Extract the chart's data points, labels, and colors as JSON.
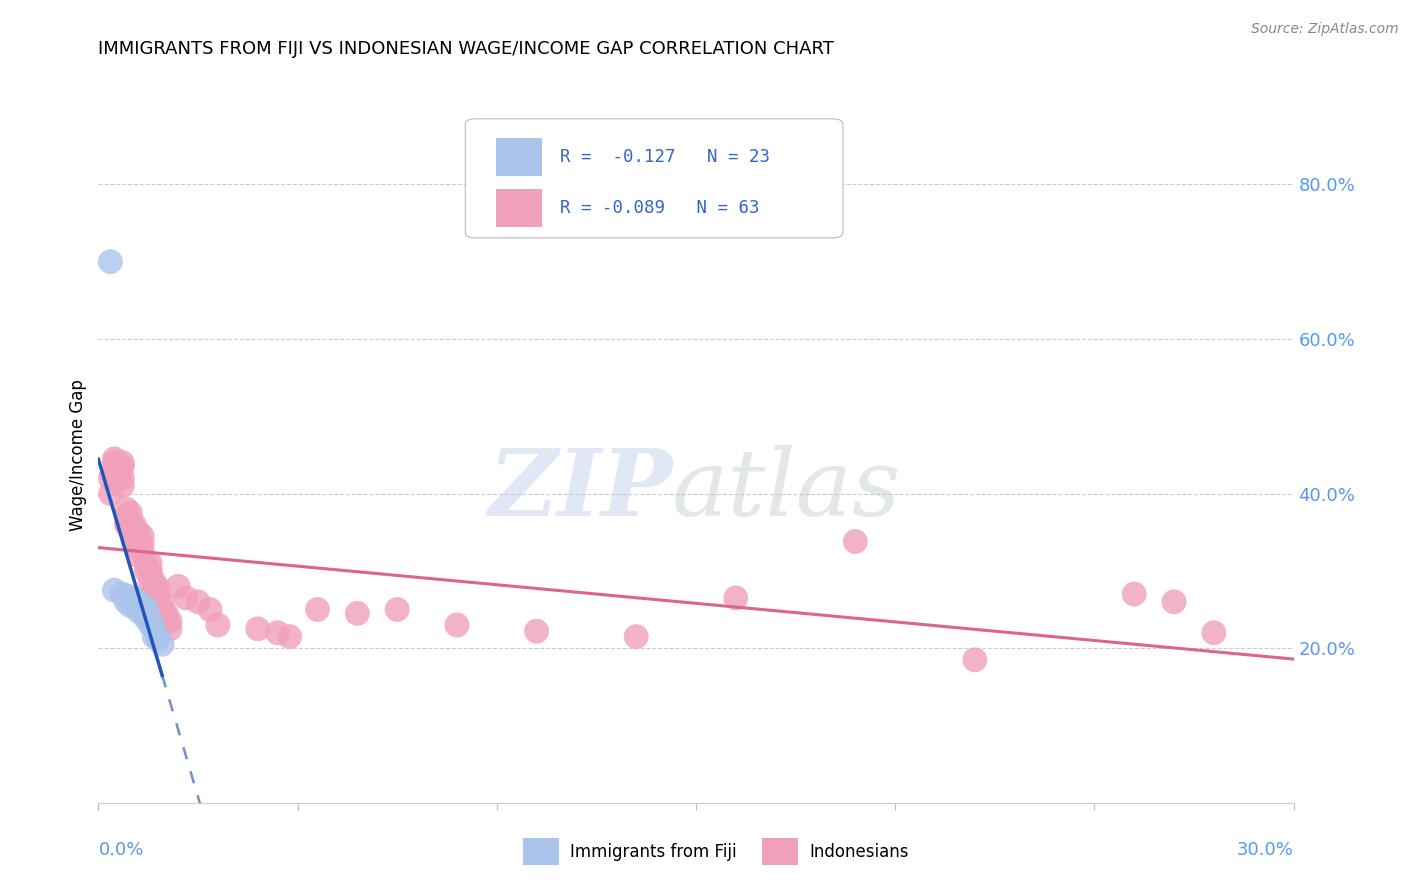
{
  "title": "IMMIGRANTS FROM FIJI VS INDONESIAN WAGE/INCOME GAP CORRELATION CHART",
  "source": "Source: ZipAtlas.com",
  "ylabel": "Wage/Income Gap",
  "legend_fiji_label": "Immigrants from Fiji",
  "legend_indonesian_label": "Indonesians",
  "legend_fiji_R": "R =  -0.127",
  "legend_fiji_N": "N = 23",
  "legend_indonesian_R": "R = -0.089",
  "legend_indonesian_N": "N = 63",
  "fiji_color": "#aac4eb",
  "indonesian_color": "#f0a0b8",
  "fiji_line_color": "#2255bb",
  "indonesian_line_color": "#dd6688",
  "background_color": "#ffffff",
  "xlim": [
    0.0,
    0.3
  ],
  "ylim": [
    0.0,
    0.9
  ],
  "ytick_values": [
    0.2,
    0.4,
    0.6,
    0.8
  ],
  "xtick_values": [
    0.0,
    0.05,
    0.1,
    0.15,
    0.2,
    0.25,
    0.3
  ],
  "fiji_points_x": [
    0.004,
    0.006,
    0.007,
    0.007,
    0.008,
    0.008,
    0.009,
    0.009,
    0.01,
    0.01,
    0.01,
    0.011,
    0.011,
    0.012,
    0.012,
    0.012,
    0.013,
    0.013,
    0.014,
    0.014,
    0.015,
    0.016,
    0.003
  ],
  "fiji_points_y": [
    0.275,
    0.27,
    0.268,
    0.26,
    0.265,
    0.255,
    0.265,
    0.258,
    0.26,
    0.252,
    0.248,
    0.255,
    0.245,
    0.252,
    0.242,
    0.238,
    0.238,
    0.23,
    0.225,
    0.215,
    0.212,
    0.205,
    0.7
  ],
  "indonesian_points_x": [
    0.003,
    0.003,
    0.004,
    0.004,
    0.004,
    0.005,
    0.005,
    0.006,
    0.006,
    0.006,
    0.006,
    0.007,
    0.007,
    0.007,
    0.008,
    0.008,
    0.008,
    0.009,
    0.009,
    0.009,
    0.01,
    0.01,
    0.01,
    0.01,
    0.011,
    0.011,
    0.011,
    0.012,
    0.012,
    0.013,
    0.013,
    0.013,
    0.013,
    0.014,
    0.014,
    0.015,
    0.015,
    0.016,
    0.016,
    0.017,
    0.017,
    0.018,
    0.018,
    0.02,
    0.022,
    0.025,
    0.028,
    0.03,
    0.04,
    0.045,
    0.048,
    0.055,
    0.065,
    0.075,
    0.09,
    0.11,
    0.135,
    0.16,
    0.19,
    0.22,
    0.26,
    0.27,
    0.28
  ],
  "indonesian_points_y": [
    0.42,
    0.4,
    0.445,
    0.44,
    0.43,
    0.435,
    0.425,
    0.44,
    0.435,
    0.42,
    0.41,
    0.38,
    0.37,
    0.36,
    0.375,
    0.365,
    0.355,
    0.36,
    0.35,
    0.34,
    0.35,
    0.34,
    0.33,
    0.32,
    0.345,
    0.335,
    0.325,
    0.31,
    0.3,
    0.31,
    0.3,
    0.295,
    0.285,
    0.285,
    0.275,
    0.278,
    0.265,
    0.26,
    0.25,
    0.245,
    0.235,
    0.235,
    0.225,
    0.28,
    0.265,
    0.26,
    0.25,
    0.23,
    0.225,
    0.22,
    0.215,
    0.25,
    0.245,
    0.25,
    0.23,
    0.222,
    0.215,
    0.265,
    0.338,
    0.185,
    0.27,
    0.26,
    0.22
  ]
}
